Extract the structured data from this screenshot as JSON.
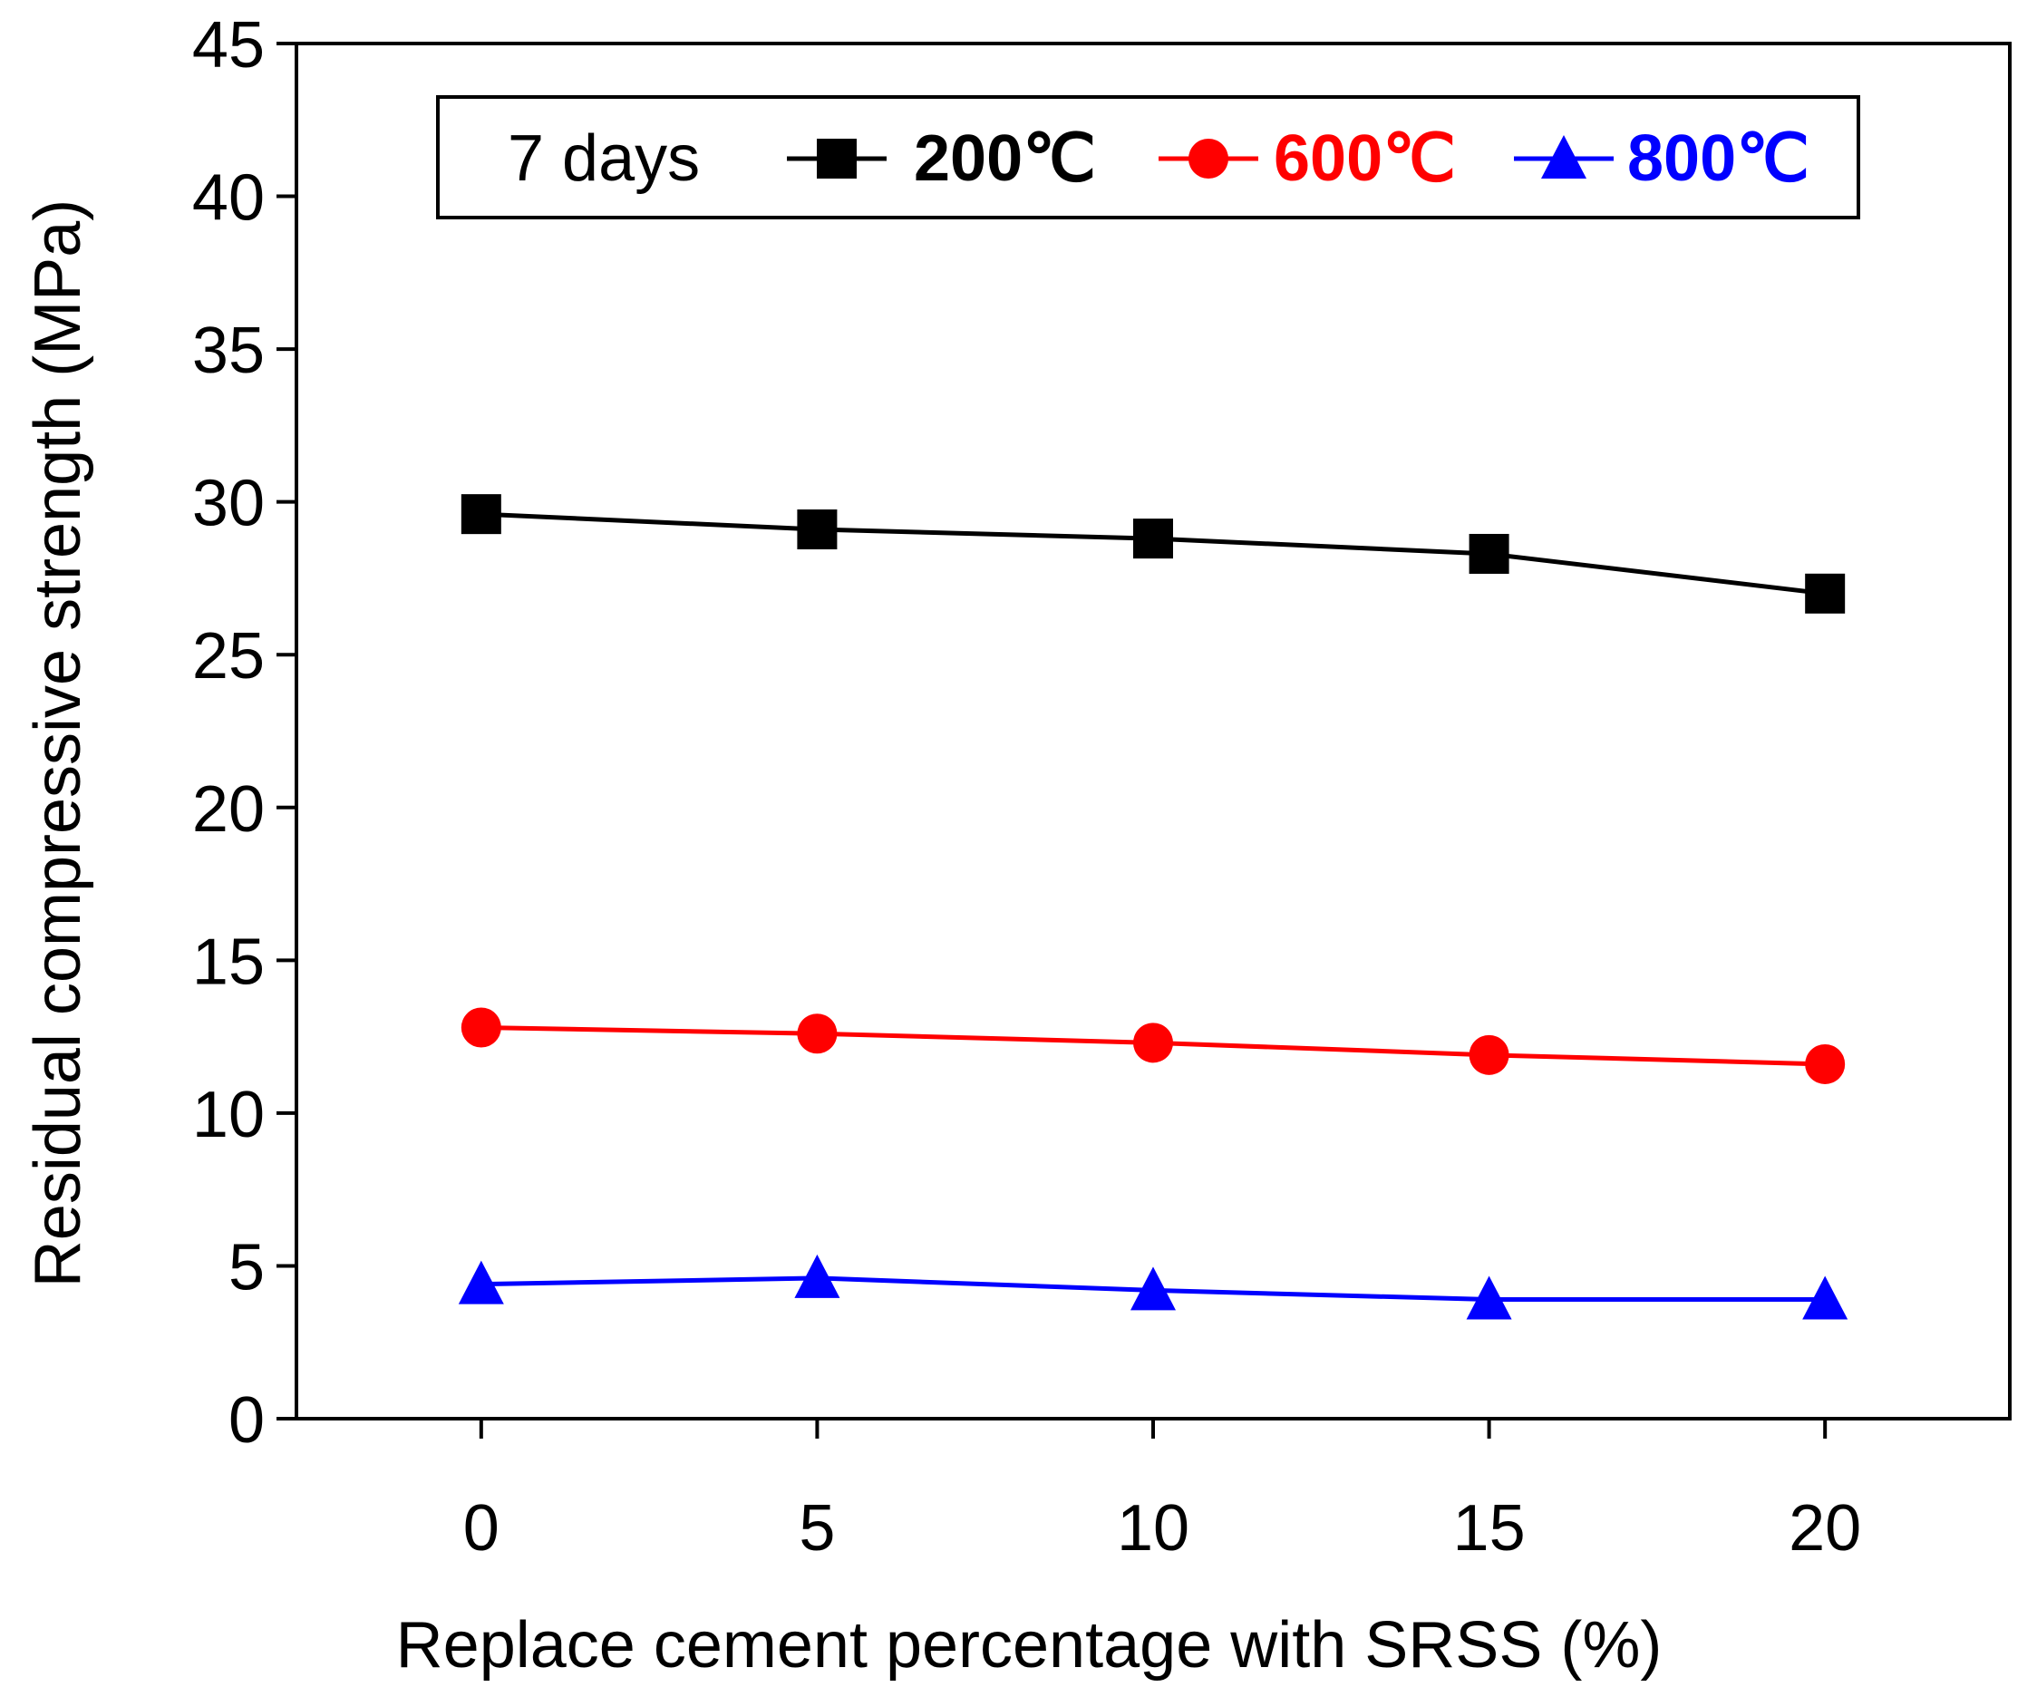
{
  "chart_data": {
    "type": "line",
    "title": "",
    "xlabel": "Replace cement percentage with SRSS (%)",
    "ylabel": "Residual compressive strength (MPa)",
    "x": [
      0,
      5,
      10,
      15,
      20
    ],
    "xlim": [
      -2.75,
      22.75
    ],
    "ylim": [
      0,
      45
    ],
    "xticks": [
      "0",
      "5",
      "10",
      "15",
      "20"
    ],
    "yticks": [
      "0",
      "5",
      "10",
      "15",
      "20",
      "25",
      "30",
      "35",
      "40",
      "45"
    ],
    "grid": false,
    "legend": {
      "title": "7 days",
      "placement": "top-center"
    },
    "series": [
      {
        "name": "200℃",
        "color": "#000000",
        "marker": "square",
        "values": [
          29.6,
          29.1,
          28.8,
          28.3,
          27.0
        ]
      },
      {
        "name": "600℃",
        "color": "#ff0000",
        "marker": "circle",
        "values": [
          12.8,
          12.6,
          12.3,
          11.9,
          11.6
        ]
      },
      {
        "name": "800℃",
        "color": "#0000ff",
        "marker": "triangle",
        "values": [
          4.4,
          4.6,
          4.2,
          3.9,
          3.9
        ]
      }
    ]
  }
}
